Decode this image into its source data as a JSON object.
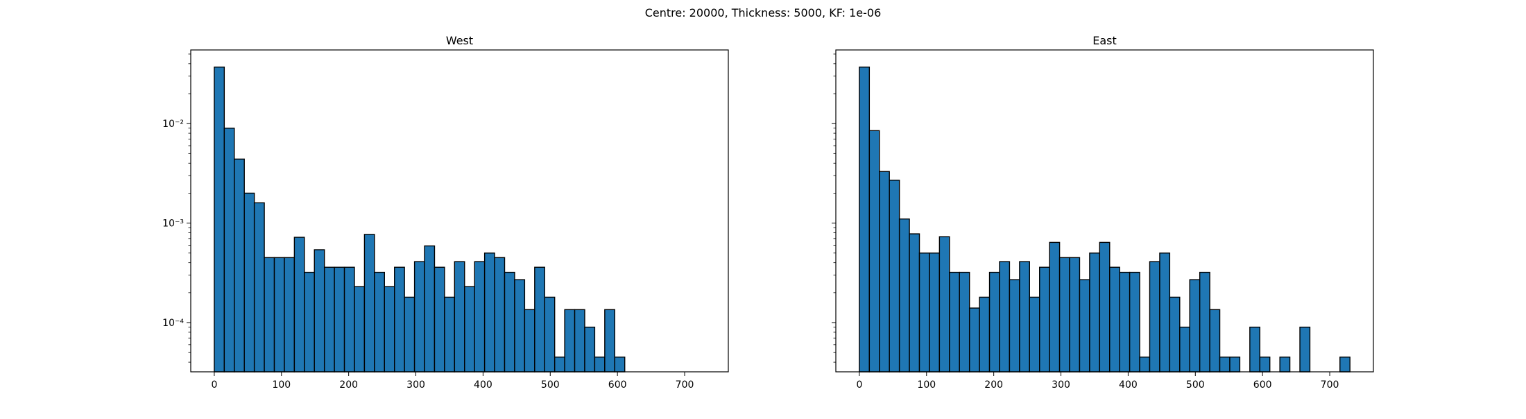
{
  "suptitle": "Centre: 20000, Thickness: 5000, KF: 1e-06",
  "chart_data": [
    {
      "type": "bar",
      "title": "West",
      "xlabel": "",
      "ylabel": "",
      "yscale": "log",
      "xlim": [
        -35,
        765
      ],
      "ylim": [
        3.2e-05,
        0.055
      ],
      "x_ticks": [
        0,
        100,
        200,
        300,
        400,
        500,
        600,
        700
      ],
      "y_ticks": [
        0.0001,
        0.001,
        0.01
      ],
      "y_tick_labels": [
        "10⁻⁴",
        "10⁻³",
        "10⁻²"
      ],
      "bin_width": 14.9,
      "bar_color": "#1f77b4",
      "edge_color": "#000000",
      "bin_starts": [
        0,
        14.9,
        29.8,
        44.7,
        59.6,
        74.5,
        89.4,
        104.3,
        119.2,
        134.1,
        149.0,
        163.9,
        178.8,
        193.7,
        208.6,
        223.5,
        238.4,
        253.3,
        268.2,
        283.1,
        298.0,
        312.9,
        327.8,
        342.7,
        357.6,
        372.5,
        387.4,
        402.3,
        417.2,
        432.1,
        447.0,
        461.9,
        476.8,
        491.7,
        506.6,
        521.5,
        536.4,
        551.3,
        566.2,
        581.1,
        596.0
      ],
      "values": [
        0.037,
        0.009,
        0.0044,
        0.002,
        0.0016,
        0.00045,
        0.00045,
        0.00045,
        0.00072,
        0.00032,
        0.00054,
        0.00036,
        0.00036,
        0.00036,
        0.00023,
        0.00077,
        0.00032,
        0.00023,
        0.00036,
        0.00018,
        0.00041,
        0.00059,
        0.00036,
        0.00018,
        0.00041,
        0.00023,
        0.00041,
        0.0005,
        0.00045,
        0.00032,
        0.00027,
        0.000135,
        0.00036,
        0.00018,
        4.5e-05,
        0.000135,
        0.000135,
        9e-05,
        4.5e-05,
        0.000135,
        4.5e-05
      ]
    },
    {
      "type": "bar",
      "title": "East",
      "xlabel": "",
      "ylabel": "",
      "yscale": "log",
      "xlim": [
        -35,
        765
      ],
      "ylim": [
        3.2e-05,
        0.055
      ],
      "x_ticks": [
        0,
        100,
        200,
        300,
        400,
        500,
        600,
        700
      ],
      "y_ticks": [
        0.0001,
        0.001,
        0.01
      ],
      "y_tick_labels": [
        "",
        "",
        ""
      ],
      "bin_width": 14.9,
      "bar_color": "#1f77b4",
      "edge_color": "#000000",
      "bin_starts": [
        0,
        14.9,
        29.8,
        44.7,
        59.6,
        74.5,
        89.4,
        104.3,
        119.2,
        134.1,
        149.0,
        163.9,
        178.8,
        193.7,
        208.6,
        223.5,
        238.4,
        253.3,
        268.2,
        283.1,
        298.0,
        312.9,
        327.8,
        342.7,
        357.6,
        372.5,
        387.4,
        402.3,
        417.2,
        432.1,
        447.0,
        461.9,
        476.8,
        491.7,
        506.6,
        521.5,
        536.4,
        551.3,
        581.1,
        596.0,
        625.8,
        655.6,
        715.2
      ],
      "values": [
        0.037,
        0.0085,
        0.0033,
        0.0027,
        0.0011,
        0.00078,
        0.0005,
        0.0005,
        0.00073,
        0.00032,
        0.00032,
        0.00014,
        0.00018,
        0.00032,
        0.00041,
        0.00027,
        0.00041,
        0.00018,
        0.00036,
        0.00064,
        0.00045,
        0.00045,
        0.00027,
        0.0005,
        0.00064,
        0.00036,
        0.00032,
        0.00032,
        4.5e-05,
        0.00041,
        0.0005,
        0.00018,
        9e-05,
        0.00027,
        0.00032,
        0.000135,
        4.5e-05,
        4.5e-05,
        9e-05,
        4.5e-05,
        4.5e-05,
        9e-05,
        4.5e-05
      ]
    }
  ]
}
